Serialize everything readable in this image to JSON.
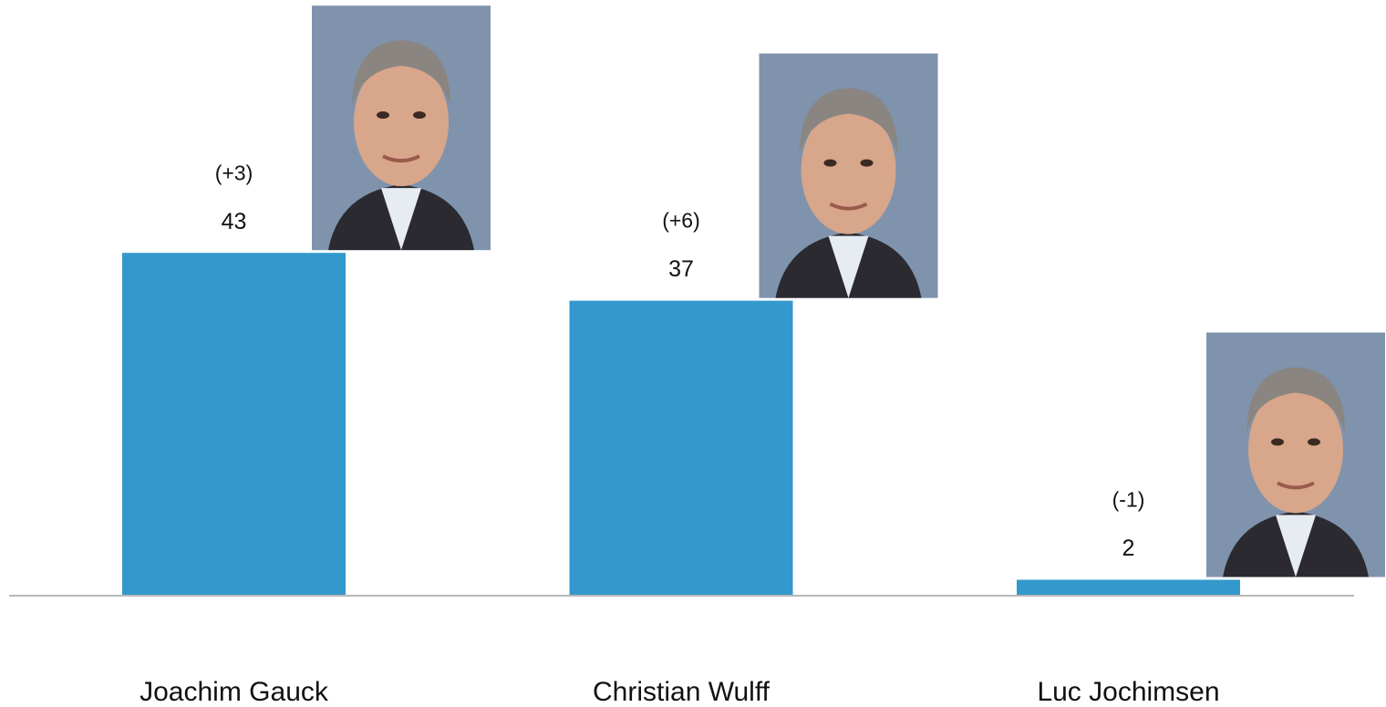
{
  "chart_data": {
    "type": "bar",
    "categories": [
      "Joachim Gauck",
      "Christian Wulff",
      "Luc Jochimsen"
    ],
    "values": [
      43,
      37,
      2
    ],
    "annotations": [
      "(+3)",
      "(+6)",
      "(-1)"
    ],
    "color": "#3399cc"
  }
}
